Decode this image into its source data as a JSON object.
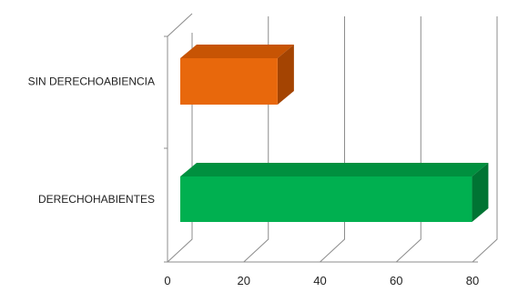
{
  "chart_data": {
    "type": "bar",
    "orientation": "horizontal",
    "style": "3d",
    "categories": [
      "SIN DERECHOABIENCIA",
      "DERECHOHABIENTES"
    ],
    "values": [
      26,
      77
    ],
    "xlim": [
      0,
      80
    ],
    "xticks": [
      0,
      20,
      40,
      60,
      80
    ],
    "grid": true,
    "legend": "none",
    "colors": {
      "SIN DERECHOABIENCIA": {
        "front": "#e8680c",
        "top": "#c75404",
        "side": "#a44402"
      },
      "DERECHOHABIENTES": {
        "front": "#00b050",
        "top": "#00903f",
        "side": "#007433"
      }
    }
  }
}
